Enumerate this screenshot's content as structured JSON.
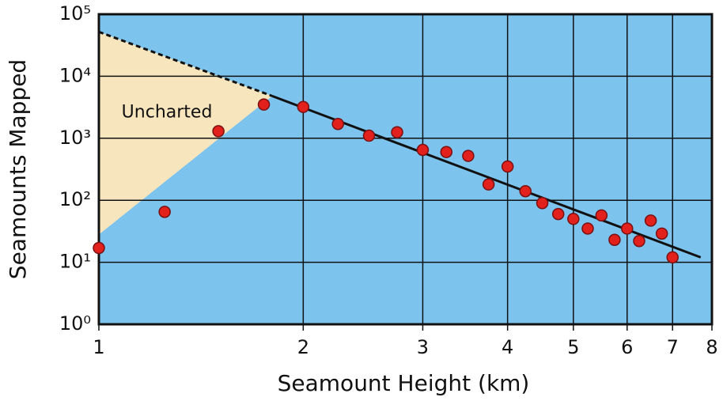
{
  "chart_data": {
    "type": "scatter",
    "xlabel": "Seamount Height (km)",
    "ylabel": "Seamounts Mapped",
    "xscale": "log",
    "yscale": "log",
    "grid": true,
    "xlim": [
      1,
      8
    ],
    "ylim": [
      1,
      100000
    ],
    "xticks": [
      1,
      2,
      3,
      4,
      5,
      6,
      7,
      8
    ],
    "yticks": [
      {
        "value": 1,
        "label": "10⁰"
      },
      {
        "value": 10,
        "label": "10¹"
      },
      {
        "value": 100,
        "label": "10²"
      },
      {
        "value": 1000,
        "label": "10³"
      },
      {
        "value": 10000,
        "label": "10⁴"
      },
      {
        "value": 100000,
        "label": "10⁵"
      }
    ],
    "background_color": "#7cc3ee",
    "uncharted_region": {
      "label": "Uncharted",
      "color": "#f7e5bd",
      "x": [
        1,
        1.8,
        1
      ],
      "y": [
        52000,
        4800,
        28
      ]
    },
    "lines": [
      {
        "style": "dashed",
        "color": "#111111",
        "x": [
          1,
          1.8
        ],
        "y": [
          52000,
          4800
        ]
      },
      {
        "style": "solid",
        "color": "#111111",
        "x": [
          1.8,
          7.7
        ],
        "y": [
          4800,
          12
        ]
      }
    ],
    "series": [
      {
        "color": "#e3211c",
        "x": [
          1,
          1.25,
          1.5,
          1.75,
          2,
          2.25,
          2.5,
          2.75,
          3,
          3.25,
          3.5,
          3.75,
          4,
          4.25,
          4.5,
          4.75,
          5,
          5.25,
          5.5,
          5.75,
          6,
          6.25,
          6.5,
          6.75,
          7
        ],
        "values": [
          17,
          65,
          1300,
          3500,
          3200,
          1700,
          1100,
          1250,
          650,
          600,
          520,
          180,
          350,
          140,
          90,
          60,
          50,
          35,
          57,
          23,
          35,
          22,
          47,
          29,
          12
        ]
      }
    ]
  }
}
